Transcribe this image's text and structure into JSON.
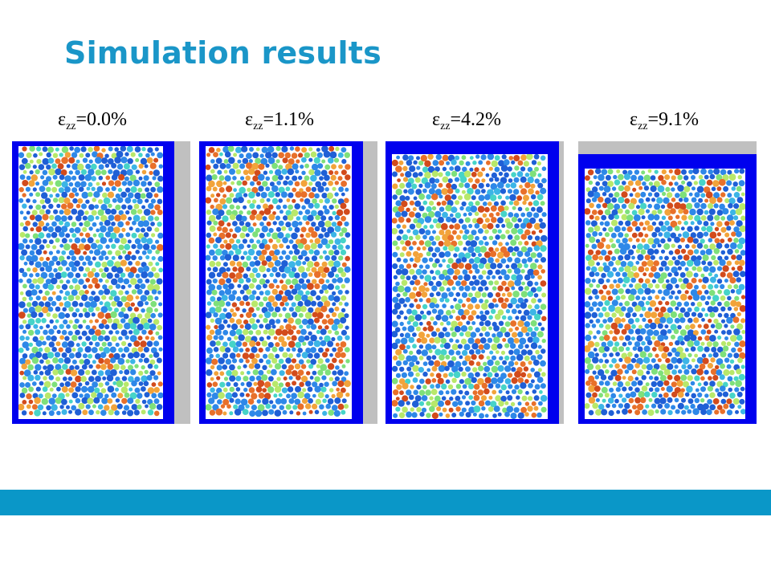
{
  "slide": {
    "title": "Simulation results"
  },
  "panels": [
    {
      "symbol": "ε",
      "subscript": "zz",
      "value": "=0.0%"
    },
    {
      "symbol": "ε",
      "subscript": "zz",
      "value": "=1.1%"
    },
    {
      "symbol": "ε",
      "subscript": "zz",
      "value": "=4.2%"
    },
    {
      "symbol": "ε",
      "subscript": "zz",
      "value": "=9.1%"
    }
  ],
  "colors": {
    "title": "#1a96c8",
    "footer_bar": "#0a97c8",
    "wall": "#0000ee",
    "platen": "#c0c0c0",
    "particle_palette": [
      "#1f5fd6",
      "#2e88e8",
      "#3cb5e6",
      "#46d4c8",
      "#7ee07a",
      "#b8e86a",
      "#f2a33a",
      "#e8702a",
      "#d24b1c"
    ]
  }
}
